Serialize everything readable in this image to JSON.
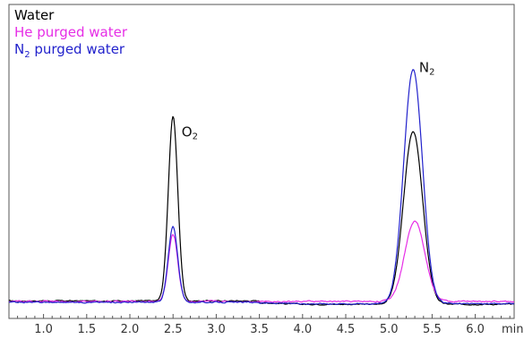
{
  "chart_data": {
    "type": "line",
    "xlim": [
      0.6,
      6.45
    ],
    "ylim": [
      0,
      1.0
    ],
    "x_axis_unit": "min",
    "x_ticks": [
      "1.0",
      "1.5",
      "2.0",
      "2.5",
      "3.0",
      "3.5",
      "4.0",
      "4.5",
      "5.0",
      "5.5",
      "6.0"
    ],
    "x_tick_values": [
      1.0,
      1.5,
      2.0,
      2.5,
      3.0,
      3.5,
      4.0,
      4.5,
      5.0,
      5.5,
      6.0
    ],
    "grid": false,
    "legend": {
      "placement": "top-left",
      "entries": [
        {
          "label": "Water",
          "subscript": "",
          "label_suffix": "",
          "color": "#000000"
        },
        {
          "label": "He purged water",
          "subscript": "",
          "label_suffix": "",
          "color": "#e62ee6"
        },
        {
          "label": "N",
          "subscript": "2",
          "label_suffix": " purged water",
          "color": "#2222cc"
        }
      ]
    },
    "annotations": [
      {
        "text": "O",
        "subscript": "2",
        "x": 2.6,
        "y": 0.64
      },
      {
        "text": "N",
        "subscript": "2",
        "x": 5.35,
        "y": 0.87
      }
    ],
    "series": [
      {
        "name": "Water",
        "color": "#000000",
        "baseline": 0.05,
        "baseline_slope": -0.012,
        "noise": 0.004,
        "peaks": [
          {
            "center": 2.5,
            "height": 0.66,
            "width": 0.055
          },
          {
            "center": 5.28,
            "height": 0.62,
            "width": 0.11
          }
        ]
      },
      {
        "name": "He purged water",
        "color": "#e62ee6",
        "baseline": 0.048,
        "baseline_slope": 0.0,
        "noise": 0.005,
        "peaks": [
          {
            "center": 2.5,
            "height": 0.24,
            "width": 0.055
          },
          {
            "center": 5.3,
            "height": 0.29,
            "width": 0.115
          }
        ]
      },
      {
        "name": "N2 purged water",
        "color": "#2222cc",
        "baseline": 0.045,
        "baseline_slope": -0.005,
        "noise": 0.004,
        "peaks": [
          {
            "center": 2.5,
            "height": 0.27,
            "width": 0.055
          },
          {
            "center": 5.28,
            "height": 0.84,
            "width": 0.108
          }
        ]
      }
    ]
  }
}
